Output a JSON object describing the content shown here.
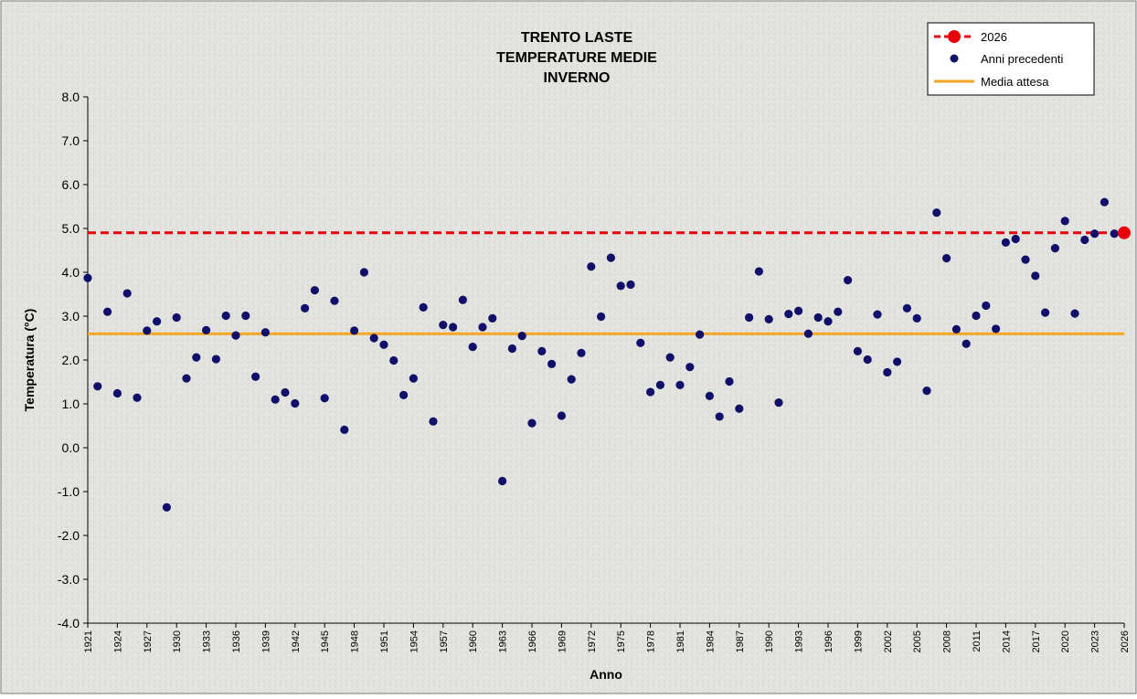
{
  "chart_data": {
    "type": "scatter",
    "title_lines": [
      "TRENTO LASTE",
      "TEMPERATURE MEDIE",
      "INVERNO"
    ],
    "xlabel": "Anno",
    "ylabel": "Temperatura (°C)",
    "xlim": [
      1921,
      2026
    ],
    "ylim": [
      -4,
      8
    ],
    "yticks": [
      -4,
      -3,
      -2,
      -1,
      0,
      1,
      2,
      3,
      4,
      5,
      6,
      7,
      8
    ],
    "ytick_labels": [
      "-4.0",
      "-3.0",
      "-2.0",
      "-1.0",
      "0.0",
      "1.0",
      "2.0",
      "3.0",
      "4.0",
      "5.0",
      "6.0",
      "7.0",
      "8.0"
    ],
    "xticks": [
      "1921",
      "1924",
      "1927",
      "1930",
      "1933",
      "1936",
      "1939",
      "1942",
      "1945",
      "1948",
      "1951",
      "1954",
      "1957",
      "1960",
      "1963",
      "1966",
      "1969",
      "1972",
      "1975",
      "1978",
      "1981",
      "1984",
      "1987",
      "1990",
      "1993",
      "1996",
      "1999",
      "2002",
      "2005",
      "2008",
      "2011",
      "2014",
      "2017",
      "2020",
      "2023",
      "2026"
    ],
    "grid": false,
    "legend_position": "top-right",
    "legend": [
      {
        "label": "2026",
        "kind": "dashed-line-marker"
      },
      {
        "label": "Anni precedenti",
        "kind": "marker"
      },
      {
        "label": "Media attesa",
        "kind": "line"
      }
    ],
    "colors": {
      "current": "#e8000b",
      "points": "#10106a",
      "mean": "#f5a623",
      "axis": "#000000"
    },
    "current_year": {
      "name": "2026",
      "x": 2026,
      "y": 4.9
    },
    "mean_line": {
      "name": "Media attesa",
      "y": 2.6
    },
    "series": [
      {
        "name": "Anni precedenti",
        "points": [
          [
            1921,
            3.87
          ],
          [
            1922,
            1.4
          ],
          [
            1923,
            3.1
          ],
          [
            1924,
            1.24
          ],
          [
            1925,
            3.52
          ],
          [
            1926,
            1.14
          ],
          [
            1927,
            2.67
          ],
          [
            1928,
            2.88
          ],
          [
            1929,
            -1.36
          ],
          [
            1930,
            2.97
          ],
          [
            1931,
            1.58
          ],
          [
            1932,
            2.06
          ],
          [
            1933,
            2.68
          ],
          [
            1934,
            2.02
          ],
          [
            1935,
            3.01
          ],
          [
            1936,
            2.56
          ],
          [
            1937,
            3.01
          ],
          [
            1938,
            1.62
          ],
          [
            1939,
            2.63
          ],
          [
            1940,
            1.1
          ],
          [
            1941,
            1.26
          ],
          [
            1942,
            1.01
          ],
          [
            1943,
            3.18
          ],
          [
            1944,
            3.59
          ],
          [
            1945,
            1.13
          ],
          [
            1946,
            3.35
          ],
          [
            1947,
            0.41
          ],
          [
            1948,
            2.67
          ],
          [
            1949,
            4.0
          ],
          [
            1950,
            2.5
          ],
          [
            1951,
            2.35
          ],
          [
            1952,
            1.99
          ],
          [
            1953,
            1.2
          ],
          [
            1954,
            1.58
          ],
          [
            1955,
            3.2
          ],
          [
            1956,
            0.6
          ],
          [
            1957,
            2.8
          ],
          [
            1958,
            2.75
          ],
          [
            1959,
            3.37
          ],
          [
            1960,
            2.3
          ],
          [
            1961,
            2.75
          ],
          [
            1962,
            2.95
          ],
          [
            1963,
            -0.76
          ],
          [
            1964,
            2.26
          ],
          [
            1965,
            2.55
          ],
          [
            1966,
            0.56
          ],
          [
            1967,
            2.2
          ],
          [
            1968,
            1.91
          ],
          [
            1969,
            0.73
          ],
          [
            1970,
            1.56
          ],
          [
            1971,
            2.16
          ],
          [
            1972,
            4.13
          ],
          [
            1973,
            2.99
          ],
          [
            1974,
            4.33
          ],
          [
            1975,
            3.69
          ],
          [
            1976,
            3.72
          ],
          [
            1977,
            2.39
          ],
          [
            1978,
            1.27
          ],
          [
            1979,
            1.43
          ],
          [
            1980,
            2.06
          ],
          [
            1981,
            1.43
          ],
          [
            1982,
            1.84
          ],
          [
            1983,
            2.58
          ],
          [
            1984,
            1.18
          ],
          [
            1985,
            0.71
          ],
          [
            1986,
            1.51
          ],
          [
            1987,
            0.89
          ],
          [
            1988,
            2.97
          ],
          [
            1989,
            4.02
          ],
          [
            1990,
            2.93
          ],
          [
            1991,
            1.03
          ],
          [
            1992,
            3.05
          ],
          [
            1993,
            3.12
          ],
          [
            1994,
            2.6
          ],
          [
            1995,
            2.97
          ],
          [
            1996,
            2.88
          ],
          [
            1997,
            3.1
          ],
          [
            1998,
            3.82
          ],
          [
            1999,
            2.2
          ],
          [
            2000,
            2.01
          ],
          [
            2001,
            3.04
          ],
          [
            2002,
            1.72
          ],
          [
            2003,
            1.96
          ],
          [
            2004,
            3.18
          ],
          [
            2005,
            2.95
          ],
          [
            2006,
            1.3
          ],
          [
            2007,
            5.36
          ],
          [
            2008,
            4.32
          ],
          [
            2009,
            2.7
          ],
          [
            2010,
            2.37
          ],
          [
            2011,
            3.01
          ],
          [
            2012,
            3.24
          ],
          [
            2013,
            2.71
          ],
          [
            2014,
            4.68
          ],
          [
            2015,
            4.76
          ],
          [
            2016,
            4.29
          ],
          [
            2017,
            3.92
          ],
          [
            2018,
            3.08
          ],
          [
            2019,
            4.55
          ],
          [
            2020,
            5.17
          ],
          [
            2021,
            3.06
          ],
          [
            2022,
            4.74
          ],
          [
            2023,
            4.88
          ],
          [
            2024,
            5.6
          ],
          [
            2025,
            4.88
          ]
        ]
      }
    ]
  }
}
